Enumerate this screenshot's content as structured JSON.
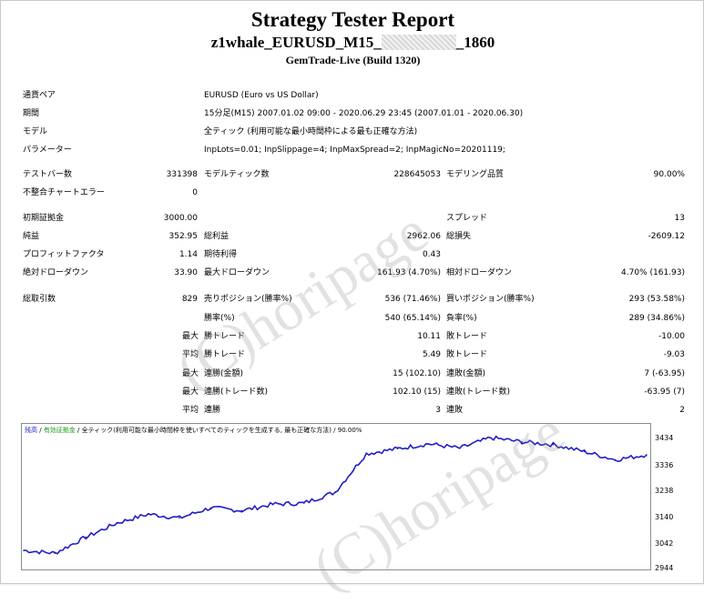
{
  "header": {
    "title": "Strategy Tester Report",
    "ea_prefix": "z1whale_EURUSD_M15_",
    "ea_suffix": "_1860",
    "server": "GemTrade-Live (Build 1320)"
  },
  "info": {
    "symbol_label": "通貨ペア",
    "symbol_value": "EURUSD (Euro vs US Dollar)",
    "period_label": "期間",
    "period_value": "15分足(M15) 2007.01.02 09:00 - 2020.06.29 23:45 (2007.01.01 - 2020.06.30)",
    "model_label": "モデル",
    "model_value": "全ティック (利用可能な最小時間枠による最も正確な方法)",
    "params_label": "パラメーター",
    "params_value": "InpLots=0.01; InpSlippage=4; InpMaxSpread=2; InpMagicNo=20201119;"
  },
  "stats1": {
    "bars_label": "テストバー数",
    "bars_value": "331398",
    "ticks_label": "モデルティック数",
    "ticks_value": "228645053",
    "quality_label": "モデリング品質",
    "quality_value": "90.00%",
    "errors_label": "不整合チャートエラー",
    "errors_value": "0"
  },
  "stats2": {
    "deposit_label": "初期証拠金",
    "deposit_value": "3000.00",
    "spread_label": "スプレッド",
    "spread_value": "13",
    "net_label": "純益",
    "net_value": "352.95",
    "gross_profit_label": "総利益",
    "gross_profit_value": "2962.06",
    "gross_loss_label": "総損失",
    "gross_loss_value": "-2609.12",
    "pf_label": "プロフィットファクタ",
    "pf_value": "1.14",
    "expected_label": "期待利得",
    "expected_value": "0.43",
    "abs_dd_label": "絶対ドローダウン",
    "abs_dd_value": "33.90",
    "max_dd_label": "最大ドローダウン",
    "max_dd_value": "161.93 (4.70%)",
    "rel_dd_label": "相対ドローダウン",
    "rel_dd_value": "4.70% (161.93)"
  },
  "trades": {
    "total_label": "総取引数",
    "total_value": "829",
    "short_label": "売りポジション(勝率%)",
    "short_value": "536 (71.46%)",
    "long_label": "買いポジション(勝率%)",
    "long_value": "293 (53.58%)",
    "win_label": "勝率(%)",
    "win_value": "540 (65.14%)",
    "loss_label": "負率(%)",
    "loss_value": "289 (34.86%)",
    "max_word": "最大",
    "avg_word": "平均",
    "largest_win_label": "勝トレード",
    "largest_win_value": "10.11",
    "largest_loss_label": "敗トレード",
    "largest_loss_value": "-10.00",
    "avg_win_label": "勝トレード",
    "avg_win_value": "5.49",
    "avg_loss_label": "敗トレード",
    "avg_loss_value": "-9.03",
    "max_consec_win_label": "連勝(金額)",
    "max_consec_win_value": "15 (102.10)",
    "max_consec_loss_label": "連敗(金額)",
    "max_consec_loss_value": "7 (-63.95)",
    "max_consec_profit_label": "連勝(トレード数)",
    "max_consec_profit_value": "102.10 (15)",
    "max_consec_lossamt_label": "連敗(トレード数)",
    "max_consec_lossamt_value": "-63.95 (7)",
    "avg_consec_win_label": "連勝",
    "avg_consec_win_value": "3",
    "avg_consec_loss_label": "連敗",
    "avg_consec_loss_value": "2"
  },
  "chart_legend": {
    "balance": "残高",
    "deposit": "有効証拠金",
    "model": "全ティック(利用可能な最小時間枠を使いすべてのティックを生成する, 最も正確な方法)",
    "quality": "90.00%"
  },
  "watermark": "(C)horipage",
  "colors": {
    "line": "#1f1fc8",
    "legend_balance": "#1f1fc8",
    "legend_equity": "#1a9a1a"
  },
  "chart_data": {
    "type": "line",
    "ylim": [
      2944,
      3434
    ],
    "yticks": [
      "3434",
      "3336",
      "3238",
      "3140",
      "3042",
      "2944"
    ],
    "x": [
      0,
      5,
      10,
      15,
      20,
      25,
      30,
      35,
      40,
      45,
      50,
      55,
      60,
      65,
      70,
      75,
      80,
      85,
      90,
      95,
      100
    ],
    "series": [
      {
        "values": [
          3000,
          2990,
          3048,
          3100,
          3132,
          3118,
          3155,
          3145,
          3168,
          3172,
          3212,
          3352,
          3370,
          3388,
          3372,
          3410,
          3395,
          3385,
          3360,
          3330,
          3348
        ]
      }
    ]
  }
}
